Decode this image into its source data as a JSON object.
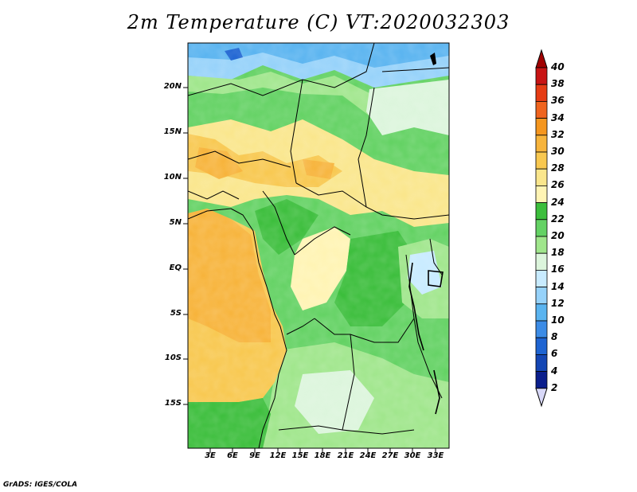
{
  "title": "2m Temperature (C) VT:2020032303",
  "credit": "GrADS: IGES/COLA",
  "map": {
    "lat_labels": [
      "20N",
      "15N",
      "10N",
      "5N",
      "EQ",
      "5S",
      "10S",
      "15S"
    ],
    "lon_labels": [
      "3E",
      "6E",
      "9E",
      "12E",
      "15E",
      "18E",
      "21E",
      "24E",
      "27E",
      "30E",
      "33E"
    ]
  },
  "colorbar": {
    "levels": [
      "40",
      "38",
      "36",
      "34",
      "32",
      "30",
      "28",
      "26",
      "24",
      "22",
      "20",
      "18",
      "16",
      "14",
      "12",
      "10",
      "8",
      "6",
      "4",
      "2"
    ],
    "colors": [
      "#a00000",
      "#c81414",
      "#e63c14",
      "#f0641e",
      "#f5961e",
      "#f7b43c",
      "#f8c850",
      "#fae68c",
      "#fff4b4",
      "#3cbe3c",
      "#64d264",
      "#a0e68c",
      "#dcf5dc",
      "#c8ebff",
      "#96d2fa",
      "#5ab4f0",
      "#3c8ce6",
      "#1e64d2",
      "#1446b4",
      "#0a1e8c"
    ]
  }
}
